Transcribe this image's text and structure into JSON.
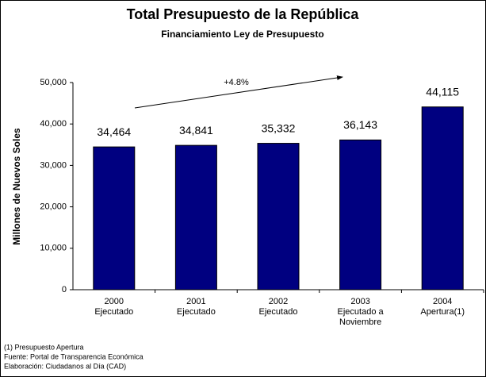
{
  "chart_data": {
    "type": "bar",
    "title": "Total Presupuesto de la República",
    "subtitle": "Financiamiento Ley de Presupuesto",
    "y_label": "Millones de Nuevos Soles",
    "categories": [
      [
        "2000",
        "Ejecutado"
      ],
      [
        "2001",
        "Ejecutado"
      ],
      [
        "2002",
        "Ejecutado"
      ],
      [
        "2003",
        "Ejecutado a",
        "Noviembre"
      ],
      [
        "2004",
        "Apertura(1)"
      ]
    ],
    "values": [
      34464,
      34841,
      35332,
      36143,
      44115
    ],
    "value_labels": [
      "34,464",
      "34,841",
      "35,332",
      "36,143",
      "44,115"
    ],
    "color": "#000080",
    "ylim": [
      0,
      50000
    ],
    "yticks": [
      0,
      {
        "value": 10000,
        "label": "10,000"
      },
      {
        "value": 20000,
        "label": "20,000"
      },
      {
        "value": 30000,
        "label": "30,000"
      },
      {
        "value": 40000,
        "label": "40,000"
      },
      {
        "value": 50000,
        "label": "50,000"
      }
    ],
    "annotation": "+4.8%",
    "footnotes": [
      "(1)   Presupuesto Apertura",
      "Fuente: Portal de Transparencia Económica",
      "Elaboración: Ciudadanos al Día (CAD)"
    ]
  }
}
